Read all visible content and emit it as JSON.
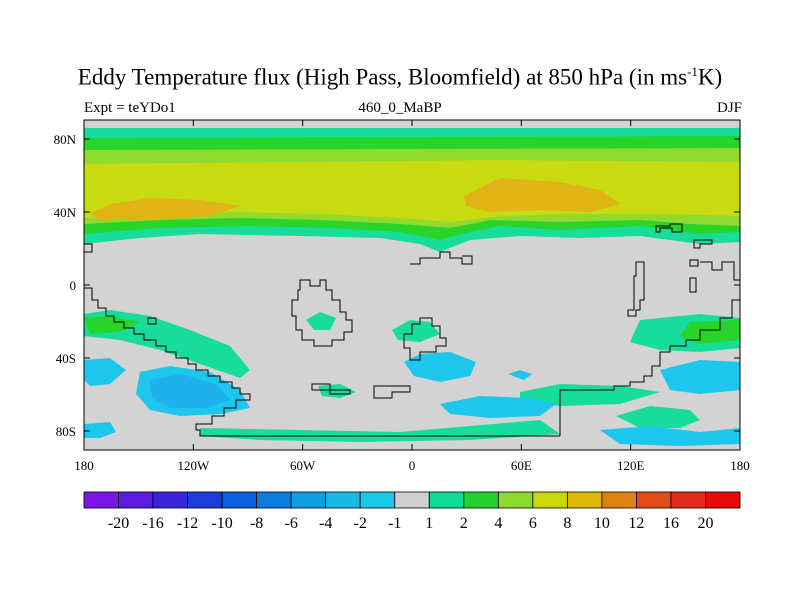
{
  "title": {
    "main": "Eddy Temperature flux (High Pass, Bloomfield) at 850 hPa (in ms",
    "superscript": "-1",
    "suffix": "K)"
  },
  "subtitle": {
    "left": "Expt = teYDo1",
    "center": "460_0_MaBP",
    "right": "DJF"
  },
  "axes": {
    "x_ticks": [
      "180",
      "120W",
      "60W",
      "0",
      "60E",
      "120E",
      "180"
    ],
    "y_ticks": [
      "80N",
      "40N",
      "0",
      "40S",
      "80S"
    ]
  },
  "colorbar": {
    "labels": [
      "-20",
      "-16",
      "-12",
      "-10",
      "-8",
      "-6",
      "-4",
      "-2",
      "-1",
      "1",
      "2",
      "4",
      "6",
      "8",
      "10",
      "12",
      "16",
      "20"
    ],
    "colors": [
      "#7a16e6",
      "#5a1ce0",
      "#3a24d8",
      "#1e3cd8",
      "#0c5edc",
      "#0a7ede",
      "#109ee2",
      "#18bae4",
      "#1cc8e8",
      "#cfcfcf",
      "#10da9a",
      "#22d030",
      "#8cd82c",
      "#cad80c",
      "#dcb80a",
      "#dc8410",
      "#e04c14",
      "#e42a1c",
      "#e80a0a"
    ]
  },
  "palette": {
    "land_bg": "#d3d3d3",
    "pos1": "#18dc9c",
    "pos2": "#28d42a",
    "pos4": "#90da30",
    "pos6": "#c8da10",
    "pos8": "#e0b414",
    "neg1": "#1cc6ec",
    "neg2": "#20b0ec"
  }
}
